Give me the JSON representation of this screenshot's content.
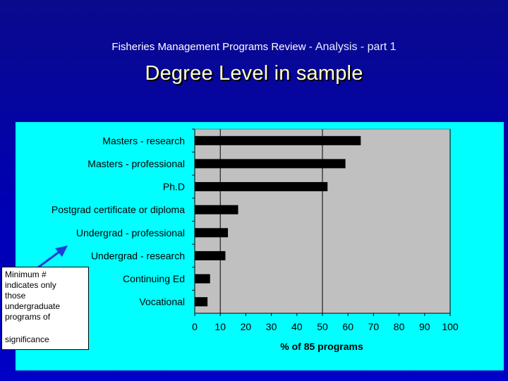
{
  "slide": {
    "subtitle_a": "Fisheries Management Programs Review - ",
    "subtitle_b": "Analysis - part 1",
    "title": "Degree Level in sample",
    "note_text": "Minimum #\nindicates only\nthose\nundergraduate\nprograms of",
    "note_tail": "significance",
    "colors": {
      "background": "#0000b4",
      "panel": "#00ffff",
      "plot_area": "#c0c0c0",
      "bar": "#000000",
      "title_text": "#ffffcc",
      "arrow": "#1a3fd6"
    }
  },
  "chart_data": {
    "type": "bar",
    "orientation": "horizontal",
    "categories": [
      "Masters - research",
      "Masters - professional",
      "Ph.D",
      "Postgrad certificate or diploma",
      "Undergrad - professional",
      "Undergrad - research",
      "Continuing Ed",
      "Vocational"
    ],
    "values": [
      65,
      59,
      52,
      17,
      13,
      12,
      6,
      5
    ],
    "xlabel": "% of 85 programs",
    "ylabel": "",
    "xlim": [
      0,
      100
    ],
    "xticks": [
      0,
      10,
      20,
      30,
      40,
      50,
      60,
      70,
      80,
      90,
      100
    ],
    "gridlines": [
      10,
      50,
      100
    ],
    "legend": "none"
  }
}
